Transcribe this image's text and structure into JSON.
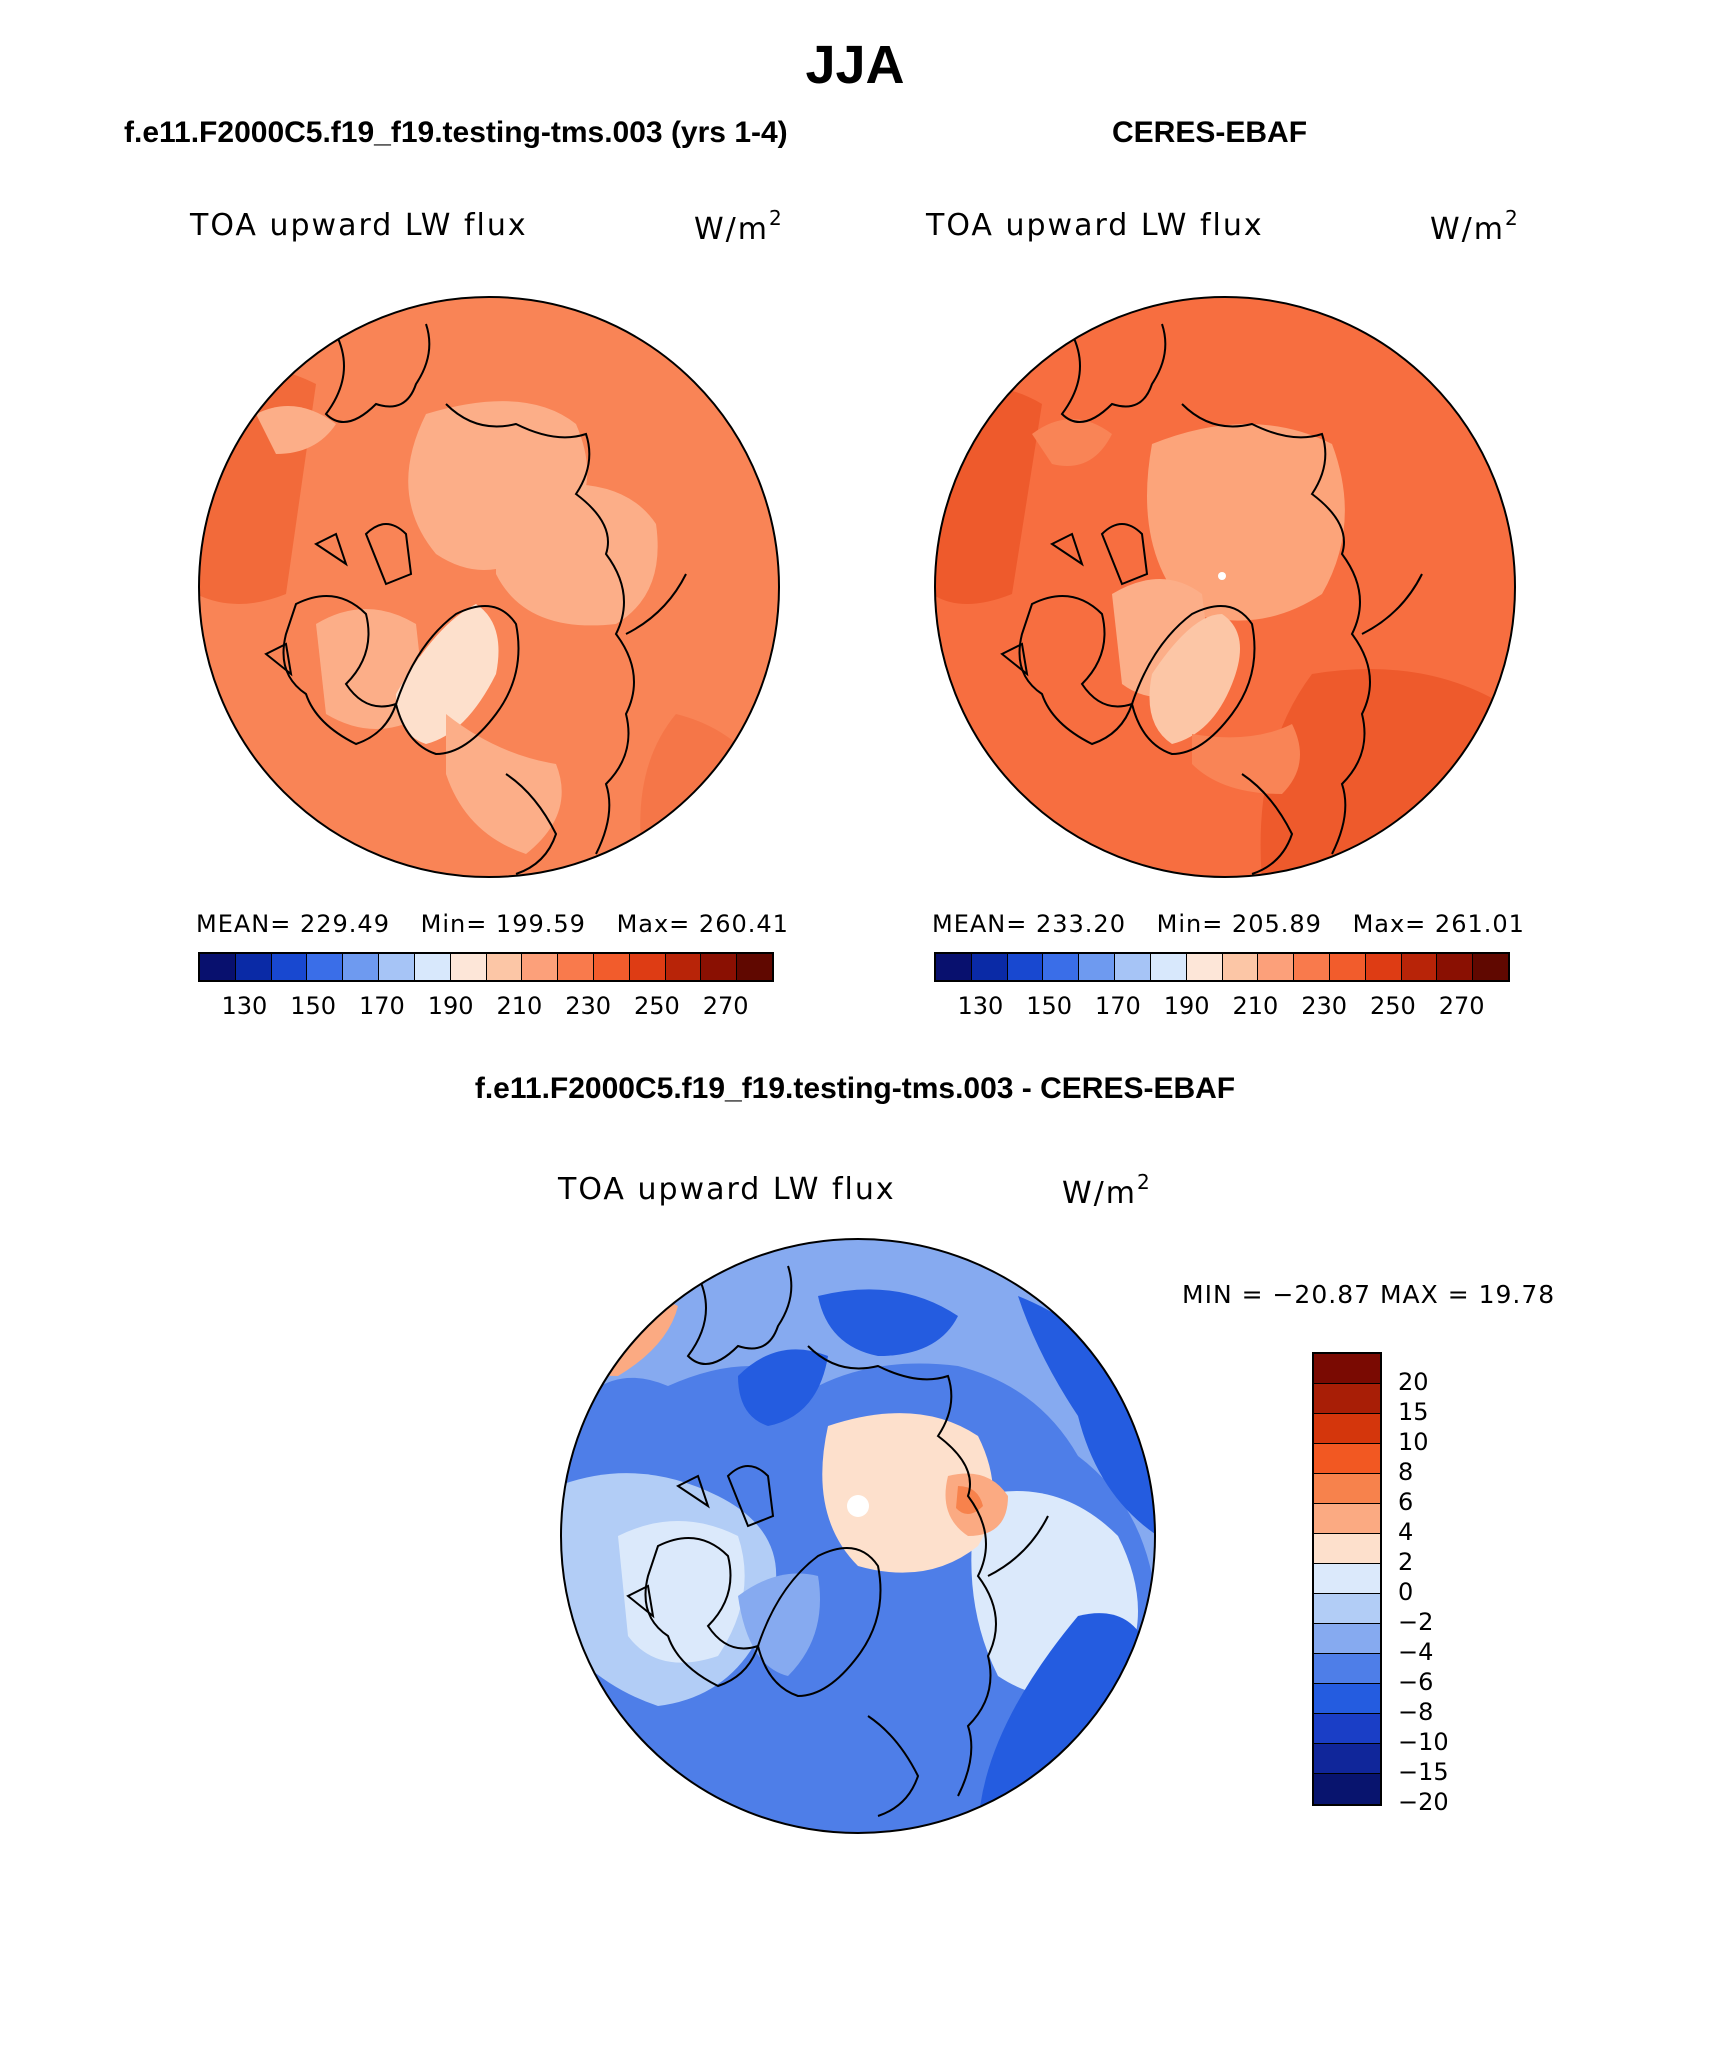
{
  "page_title": "JJA",
  "panels": [
    {
      "title": "f.e11.F2000C5.f19_f19.testing-tms.003 (yrs 1-4)",
      "label": "TOA upward LW flux",
      "unit": "W/m",
      "unit_exp": "2",
      "stats": {
        "mean": "MEAN= 229.49",
        "min": "Min= 199.59",
        "max": "Max= 260.41"
      },
      "ticks": [
        "130",
        "150",
        "170",
        "190",
        "210",
        "230",
        "250",
        "270"
      ]
    },
    {
      "title": "CERES-EBAF",
      "label": "TOA upward LW flux",
      "unit": "W/m",
      "unit_exp": "2",
      "stats": {
        "mean": "MEAN= 233.20",
        "min": "Min= 205.89",
        "max": "Max= 261.01"
      },
      "ticks": [
        "130",
        "150",
        "170",
        "190",
        "210",
        "230",
        "250",
        "270"
      ]
    }
  ],
  "diff_panel": {
    "title": "f.e11.F2000C5.f19_f19.testing-tms.003 - CERES-EBAF",
    "label": "TOA upward LW flux",
    "unit": "W/m",
    "unit_exp": "2",
    "minmax": "MIN = −20.87 MAX =   19.78",
    "ticks": [
      "20",
      "15",
      "10",
      "8",
      "6",
      "4",
      "2",
      "0",
      "−2",
      "−4",
      "−6",
      "−8",
      "−10",
      "−15",
      "−20"
    ]
  },
  "colors": {
    "abs_scale": [
      "#08106e",
      "#0a2aa6",
      "#1848d0",
      "#3a6ee8",
      "#6e9af0",
      "#a6c4f6",
      "#d8e8fc",
      "#fde6d8",
      "#fcc6a6",
      "#fca07a",
      "#f97a4c",
      "#f25c2c",
      "#de3c14",
      "#b82408",
      "#8a1002",
      "#600800"
    ],
    "diff_scale": [
      "#7a0a02",
      "#a81e06",
      "#d4360c",
      "#f25822",
      "#f7824c",
      "#fbaa82",
      "#fde0cc",
      "#dbe9fb",
      "#b2cdf6",
      "#86aaf0",
      "#4e7ee8",
      "#245ce0",
      "#1a3ec6",
      "#10269a",
      "#08146e"
    ]
  }
}
